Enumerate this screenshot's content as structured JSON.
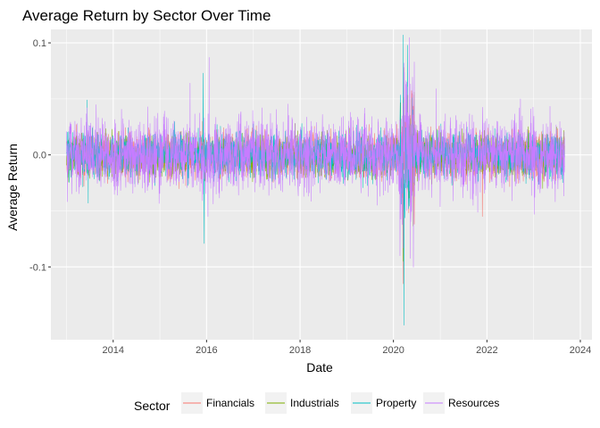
{
  "chart_data": {
    "type": "line",
    "title": "Average Return by Sector Over Time",
    "xlabel": "Date",
    "ylabel": "Average Return",
    "x_type": "date",
    "xlim": [
      "2012-09-01",
      "2024-04-01"
    ],
    "ylim": [
      -0.165,
      0.112
    ],
    "x_ticks": [
      "2014",
      "2016",
      "2018",
      "2020",
      "2022",
      "2024"
    ],
    "y_ticks": [
      {
        "value": 0.1,
        "label": "0.1"
      },
      {
        "value": 0.0,
        "label": "0.0"
      },
      {
        "value": -0.1,
        "label": "-0.1"
      }
    ],
    "grid": true,
    "legend_position": "bottom",
    "legend_title": "Sector",
    "date_range": [
      "2013-01-01",
      "2023-08-31"
    ],
    "series": [
      {
        "name": "Financials",
        "color": "#F8766D",
        "typical_amplitude": 0.01,
        "extremes": [
          {
            "date": "2021-11-26",
            "value": -0.055
          },
          {
            "date": "2020-03-16",
            "value": -0.115
          },
          {
            "date": "2020-03-24",
            "value": 0.078
          },
          {
            "date": "2015-12-01",
            "value": 0.03
          }
        ]
      },
      {
        "name": "Industrials",
        "color": "#7CAE00",
        "typical_amplitude": 0.009,
        "extremes": [
          {
            "date": "2020-03-16",
            "value": -0.095
          },
          {
            "date": "2020-03-25",
            "value": 0.065
          },
          {
            "date": "2023-03-13",
            "value": -0.03
          }
        ]
      },
      {
        "name": "Property",
        "color": "#00BFC4",
        "typical_amplitude": 0.01,
        "extremes": [
          {
            "date": "2020-03-17",
            "value": 0.107
          },
          {
            "date": "2020-03-23",
            "value": -0.152
          },
          {
            "date": "2020-04-20",
            "value": 0.098
          },
          {
            "date": "2015-12-14",
            "value": -0.079
          },
          {
            "date": "2015-12-04",
            "value": 0.073
          },
          {
            "date": "2013-06-12",
            "value": 0.049
          },
          {
            "date": "2013-06-20",
            "value": -0.043
          }
        ]
      },
      {
        "name": "Resources",
        "color": "#C77CFF",
        "typical_amplitude": 0.016,
        "extremes": [
          {
            "date": "2016-01-21",
            "value": 0.087
          },
          {
            "date": "2016-01-12",
            "value": -0.055
          },
          {
            "date": "2015-08-25",
            "value": 0.064
          },
          {
            "date": "2020-03-18",
            "value": -0.083
          },
          {
            "date": "2020-03-24",
            "value": 0.082
          },
          {
            "date": "2020-12-01",
            "value": 0.059
          },
          {
            "date": "2022-09-20",
            "value": 0.05
          },
          {
            "date": "2023-01-05",
            "value": -0.053
          },
          {
            "date": "2021-09-15",
            "value": -0.045
          }
        ]
      }
    ]
  }
}
